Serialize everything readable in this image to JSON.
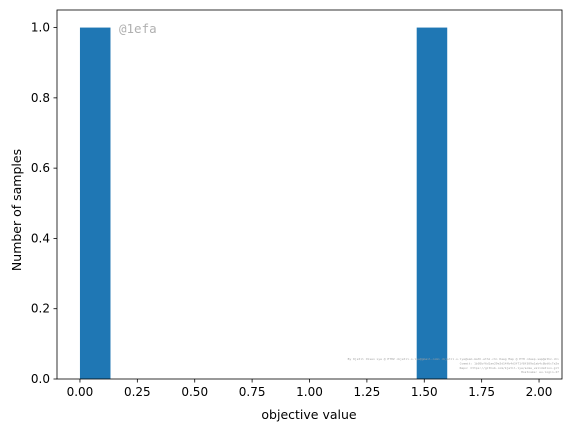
{
  "chart_data": {
    "type": "bar",
    "title": "",
    "xlabel": "objective value",
    "ylabel": "Number of samples",
    "xlim": [
      -0.1,
      2.1
    ],
    "ylim": [
      0,
      1.05
    ],
    "bars": [
      {
        "x0": 0.0,
        "x1": 0.133,
        "value": 1.0
      },
      {
        "x0": 1.467,
        "x1": 1.6,
        "value": 1.0
      }
    ],
    "xticks": [
      0.0,
      0.25,
      0.5,
      0.75,
      1.0,
      1.25,
      1.5,
      1.75,
      2.0
    ],
    "xtick_labels": [
      "0.00",
      "0.25",
      "0.50",
      "0.75",
      "1.00",
      "1.25",
      "1.50",
      "1.75",
      "2.00"
    ],
    "yticks": [
      0.0,
      0.2,
      0.4,
      0.6,
      0.8,
      1.0
    ],
    "ytick_labels": [
      "0.0",
      "0.2",
      "0.4",
      "0.6",
      "0.8",
      "1.0"
    ],
    "annotation": "@1efa",
    "footer_lines": [
      "By Kjetil Olsen Lye @ ETHZ <kjetil.o.lye@gmail.com> <kjetil.o.lye@sam.math.ethz.ch> Kaeg Map @ ETH <deep.sap@ethz.ch>",
      "Commit: 1b05bf6d1ae29e2d14fb4d3f71f8f309a1ab4c8bd6c7a2e",
      "Repo: https://github.com/kjetil-lye/some_validation.git",
      "Hostname: eu-login-27"
    ],
    "grid": false,
    "bar_color": "#1f77b4"
  }
}
